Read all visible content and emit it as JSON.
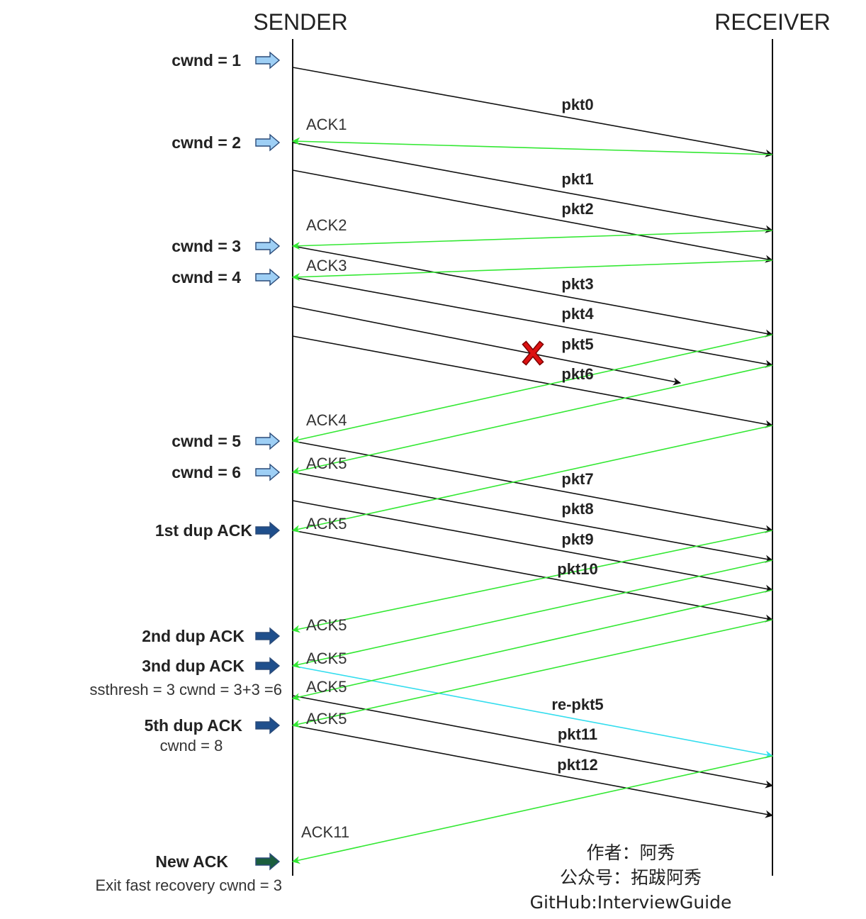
{
  "headers": {
    "sender": "SENDER",
    "receiver": "RECEIVER"
  },
  "colors": {
    "packet": "#000000",
    "ack": "#33e833",
    "retransmit": "#33ddee",
    "arrow_light": "#9ecff5",
    "arrow_dark": "#1f4f8c",
    "arrow_green": "#1b5e3e",
    "lost_marker": "#dd1111"
  },
  "events": [
    {
      "label": "cwnd = 1",
      "sub": "",
      "arrow": "light"
    },
    {
      "label": "cwnd = 2",
      "sub": "",
      "arrow": "light"
    },
    {
      "label": "cwnd = 3",
      "sub": "",
      "arrow": "light"
    },
    {
      "label": "cwnd = 4",
      "sub": "",
      "arrow": "light"
    },
    {
      "label": "cwnd = 5",
      "sub": "",
      "arrow": "light"
    },
    {
      "label": "cwnd = 6",
      "sub": "",
      "arrow": "light"
    },
    {
      "label": "1st dup ACK",
      "sub": "",
      "arrow": "dark"
    },
    {
      "label": "2nd dup ACK",
      "sub": "",
      "arrow": "dark"
    },
    {
      "label": "3nd dup ACK",
      "sub": "ssthresh = 3  cwnd = 3+3 =6",
      "arrow": "dark"
    },
    {
      "label": "5th dup ACK",
      "sub": "cwnd = 8",
      "arrow": "dark"
    },
    {
      "label": "New ACK",
      "sub": "Exit fast recovery cwnd = 3",
      "arrow": "green"
    }
  ],
  "packets": [
    {
      "label": "pkt0",
      "lost": false,
      "retransmit": false
    },
    {
      "label": "pkt1",
      "lost": false,
      "retransmit": false
    },
    {
      "label": "pkt2",
      "lost": false,
      "retransmit": false
    },
    {
      "label": "pkt3",
      "lost": false,
      "retransmit": false
    },
    {
      "label": "pkt4",
      "lost": false,
      "retransmit": false
    },
    {
      "label": "pkt5",
      "lost": true,
      "retransmit": false
    },
    {
      "label": "pkt6",
      "lost": false,
      "retransmit": false
    },
    {
      "label": "pkt7",
      "lost": false,
      "retransmit": false
    },
    {
      "label": "pkt8",
      "lost": false,
      "retransmit": false
    },
    {
      "label": "pkt9",
      "lost": false,
      "retransmit": false
    },
    {
      "label": "pkt10",
      "lost": false,
      "retransmit": false
    },
    {
      "label": "re-pkt5",
      "lost": false,
      "retransmit": true
    },
    {
      "label": "pkt11",
      "lost": false,
      "retransmit": false
    },
    {
      "label": "pkt12",
      "lost": false,
      "retransmit": false
    }
  ],
  "acks": [
    {
      "label": "ACK1"
    },
    {
      "label": "ACK2"
    },
    {
      "label": "ACK3"
    },
    {
      "label": "ACK4"
    },
    {
      "label": "ACK5"
    },
    {
      "label": "ACK5"
    },
    {
      "label": "ACK5"
    },
    {
      "label": "ACK5"
    },
    {
      "label": "ACK5"
    },
    {
      "label": "ACK5"
    },
    {
      "label": "ACK11"
    }
  ],
  "credits": {
    "author": "作者：阿秀",
    "account": "公众号：拓跋阿秀",
    "github": "GitHub:InterviewGuide"
  }
}
